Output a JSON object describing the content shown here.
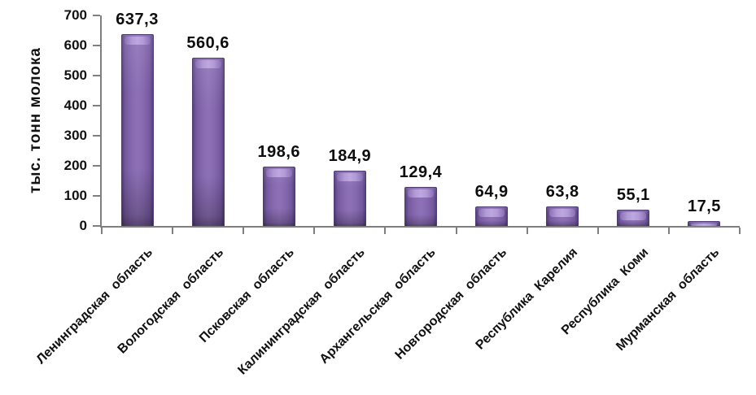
{
  "chart_data": {
    "type": "bar",
    "title": "",
    "xlabel": "",
    "ylabel": "тыс. тонн молока",
    "categories": [
      "Ленинградская область",
      "Вологодская область",
      "Псковская область",
      "Калининградская область",
      "Архангельская область",
      "Новгородская область",
      "Республика Карелия",
      "Республика Коми",
      "Мурманская область"
    ],
    "values": [
      637.3,
      560.6,
      198.6,
      184.9,
      129.4,
      64.9,
      63.8,
      55.1,
      17.5
    ],
    "value_labels": [
      "637,3",
      "560,6",
      "198,6",
      "184,9",
      "129,4",
      "64,9",
      "63,8",
      "55,1",
      "17,5"
    ],
    "ylim": [
      0,
      700
    ],
    "ytick_step": 100,
    "ytick_labels": [
      "0",
      "100",
      "200",
      "300",
      "400",
      "500",
      "600",
      "700"
    ],
    "grid": false,
    "legend_position": "none",
    "bar_color": "#8064A2",
    "bar_edge_color": "#4E3C74",
    "bar_highlight_color": "#BDA8E0",
    "axis_color": "#7F7F7F",
    "text_color": "#111111",
    "background_color": "#FFFFFF"
  }
}
